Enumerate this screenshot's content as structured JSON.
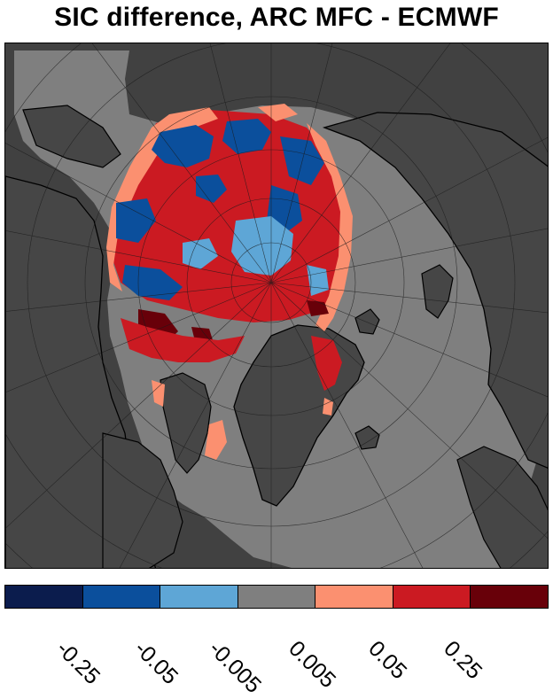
{
  "title": "SIC difference, ARC MFC - ECMWF",
  "map": {
    "projection": "north-polar-stereographic",
    "colors": {
      "ocean_masked": "#414141",
      "land": "#464646",
      "neutral": "#7f7f7f",
      "coast": "#000000",
      "grid": "#1a1a1a"
    }
  },
  "colorbar": {
    "colors": [
      "#0b1c4d",
      "#0b4f9c",
      "#5ea6d6",
      "#7f7f7f",
      "#fb9070",
      "#cb1a22",
      "#680009"
    ],
    "tick_labels": [
      "-0.25",
      "-0.05",
      "-0.005",
      "0.005",
      "0.05",
      "0.25"
    ]
  }
}
